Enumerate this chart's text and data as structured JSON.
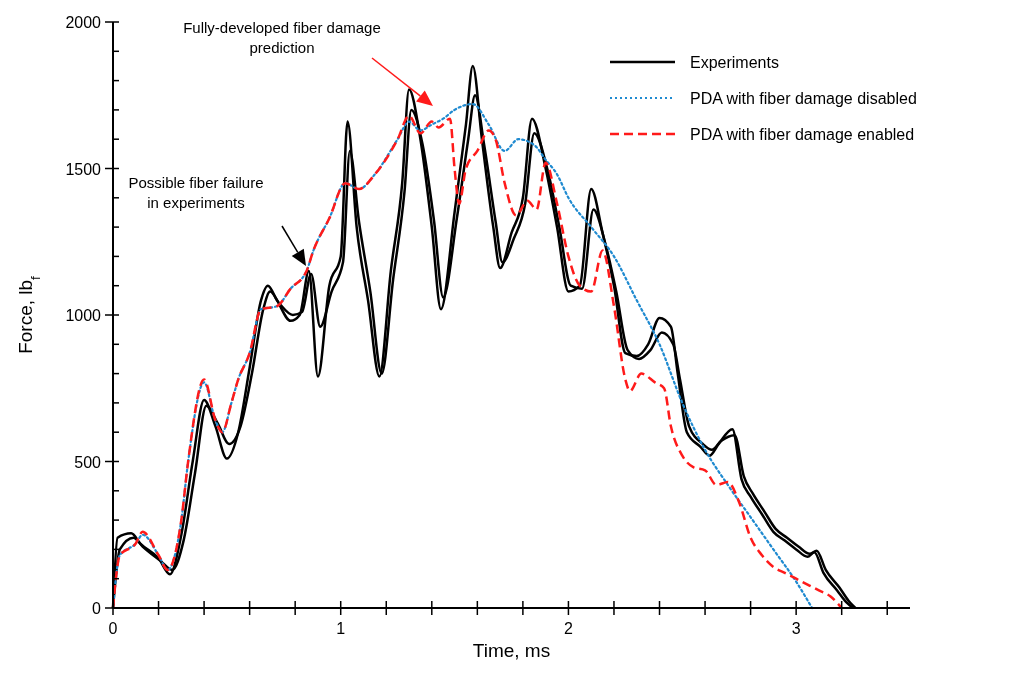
{
  "chart_data": {
    "type": "line",
    "xlabel": "Time, ms",
    "ylabel": "Force, lb$_{f}$",
    "xlim": [
      0,
      3.5
    ],
    "ylim": [
      0,
      2000
    ],
    "xticks": [
      0,
      {
        "value": 0.2,
        "label": null
      },
      {
        "value": 0.4,
        "label": null
      },
      {
        "value": 0.6,
        "label": null
      },
      {
        "value": 0.8,
        "label": null
      },
      1,
      {
        "value": 1.2,
        "label": null
      },
      {
        "value": 1.4,
        "label": null
      },
      {
        "value": 1.6,
        "label": null
      },
      {
        "value": 1.8,
        "label": null
      },
      2,
      {
        "value": 2.2,
        "label": null
      },
      {
        "value": 2.4,
        "label": null
      },
      {
        "value": 2.6,
        "label": null
      },
      {
        "value": 2.8,
        "label": null
      },
      3,
      {
        "value": 3.2,
        "label": null
      },
      {
        "value": 3.4,
        "label": null
      }
    ],
    "yticks": [
      0,
      {
        "value": 100,
        "label": null
      },
      {
        "value": 200,
        "label": null
      },
      {
        "value": 300,
        "label": null
      },
      {
        "value": 400,
        "label": null
      },
      500,
      {
        "value": 600,
        "label": null
      },
      {
        "value": 700,
        "label": null
      },
      {
        "value": 800,
        "label": null
      },
      {
        "value": 900,
        "label": null
      },
      1000,
      {
        "value": 1100,
        "label": null
      },
      {
        "value": 1200,
        "label": null
      },
      {
        "value": 1300,
        "label": null
      },
      {
        "value": 1400,
        "label": null
      },
      1500,
      {
        "value": 1600,
        "label": null
      },
      {
        "value": 1700,
        "label": null
      },
      {
        "value": 1800,
        "label": null
      },
      {
        "value": 1900,
        "label": null
      },
      2000
    ],
    "grid": false,
    "legend": "top right",
    "marker": "none",
    "series": [
      {
        "name": "Experiments",
        "color": "#000000",
        "line_style": "solid",
        "x": [
          0,
          0.02,
          0.08,
          0.12,
          0.2,
          0.25,
          0.3,
          0.35,
          0.4,
          0.45,
          0.5,
          0.55,
          0.6,
          0.65,
          0.68,
          0.72,
          0.78,
          0.82,
          0.86,
          0.9,
          0.95,
          1.0,
          1.03,
          1.07,
          1.12,
          1.17,
          1.22,
          1.27,
          1.3,
          1.35,
          1.4,
          1.44,
          1.5,
          1.55,
          1.58,
          1.62,
          1.67,
          1.7,
          1.75,
          1.8,
          1.84,
          1.9,
          1.95,
          2.0,
          2.05,
          2.1,
          2.15,
          2.2,
          2.25,
          2.3,
          2.35,
          2.4,
          2.45,
          2.48,
          2.52,
          2.58,
          2.62,
          2.66,
          2.72,
          2.76,
          2.8,
          2.85,
          2.9,
          2.95,
          3.0,
          3.05,
          3.08,
          3.12,
          3.18,
          3.22,
          3.25
        ],
        "values": [
          0,
          240,
          255,
          220,
          170,
          115,
          250,
          500,
          710,
          620,
          510,
          600,
          820,
          1050,
          1100,
          1050,
          980,
          1000,
          1150,
          790,
          1100,
          1200,
          1660,
          1300,
          1050,
          790,
          1150,
          1450,
          1770,
          1600,
          1300,
          1020,
          1350,
          1650,
          1850,
          1600,
          1300,
          1160,
          1280,
          1400,
          1670,
          1500,
          1300,
          1080,
          1100,
          1430,
          1280,
          1100,
          870,
          860,
          900,
          990,
          960,
          800,
          600,
          550,
          520,
          560,
          610,
          440,
          380,
          320,
          260,
          230,
          200,
          175,
          190,
          120,
          60,
          20,
          0
        ]
      },
      {
        "color": "#000000",
        "line_style": "solid",
        "x": [
          0,
          0.03,
          0.09,
          0.13,
          0.21,
          0.26,
          0.31,
          0.36,
          0.41,
          0.46,
          0.51,
          0.56,
          0.61,
          0.66,
          0.69,
          0.73,
          0.79,
          0.83,
          0.87,
          0.91,
          0.96,
          1.01,
          1.04,
          1.08,
          1.13,
          1.18,
          1.23,
          1.28,
          1.31,
          1.36,
          1.41,
          1.45,
          1.51,
          1.56,
          1.59,
          1.63,
          1.68,
          1.71,
          1.76,
          1.81,
          1.85,
          1.91,
          1.96,
          2.01,
          2.06,
          2.11,
          2.16,
          2.21,
          2.26,
          2.31,
          2.36,
          2.41,
          2.46,
          2.49,
          2.53,
          2.59,
          2.63,
          2.67,
          2.73,
          2.77,
          2.81,
          2.86,
          2.91,
          2.96,
          3.01,
          3.06,
          3.09,
          3.13,
          3.19,
          3.23,
          3.26
        ],
        "values": [
          0,
          200,
          240,
          210,
          160,
          130,
          230,
          460,
          690,
          630,
          560,
          620,
          800,
          1020,
          1080,
          1040,
          1000,
          1010,
          1140,
          960,
          1080,
          1180,
          1560,
          1320,
          1080,
          800,
          1120,
          1420,
          1700,
          1580,
          1320,
          1060,
          1330,
          1600,
          1750,
          1580,
          1320,
          1180,
          1260,
          1380,
          1620,
          1490,
          1300,
          1100,
          1090,
          1360,
          1250,
          1080,
          880,
          850,
          880,
          940,
          900,
          780,
          620,
          560,
          540,
          570,
          590,
          450,
          390,
          330,
          270,
          240,
          210,
          185,
          195,
          130,
          70,
          25,
          0
        ]
      },
      {
        "name": "PDA with fiber damage disabled",
        "color": "#1f8ad0",
        "line_style": "dotted",
        "x": [
          0,
          0.03,
          0.1,
          0.13,
          0.2,
          0.24,
          0.3,
          0.33,
          0.4,
          0.45,
          0.48,
          0.52,
          0.55,
          0.6,
          0.65,
          0.72,
          0.78,
          0.85,
          0.88,
          0.95,
          1.02,
          1.08,
          1.15,
          1.25,
          1.3,
          1.35,
          1.4,
          1.45,
          1.5,
          1.58,
          1.65,
          1.72,
          1.78,
          1.85,
          1.9,
          1.95,
          2.0,
          2.1,
          2.2,
          2.3,
          2.4,
          2.5,
          2.6,
          2.7,
          2.8,
          2.9,
          3.0,
          3.07
        ],
        "values": [
          0,
          180,
          220,
          250,
          180,
          130,
          300,
          500,
          770,
          640,
          600,
          700,
          780,
          870,
          1020,
          1030,
          1090,
          1150,
          1220,
          1330,
          1450,
          1430,
          1480,
          1600,
          1660,
          1630,
          1650,
          1670,
          1700,
          1720,
          1650,
          1560,
          1600,
          1580,
          1530,
          1480,
          1400,
          1300,
          1200,
          1050,
          900,
          700,
          540,
          420,
          310,
          200,
          90,
          0
        ]
      },
      {
        "name": "PDA with fiber damage enabled",
        "color": "#ff1a1a",
        "line_style": "dashed",
        "x": [
          0,
          0.03,
          0.1,
          0.13,
          0.2,
          0.24,
          0.3,
          0.33,
          0.4,
          0.45,
          0.48,
          0.52,
          0.55,
          0.6,
          0.65,
          0.72,
          0.78,
          0.85,
          0.88,
          0.95,
          1.02,
          1.08,
          1.15,
          1.25,
          1.3,
          1.35,
          1.4,
          1.43,
          1.48,
          1.5,
          1.52,
          1.55,
          1.6,
          1.65,
          1.68,
          1.72,
          1.77,
          1.82,
          1.86,
          1.9,
          1.95,
          2.0,
          2.05,
          2.1,
          2.15,
          2.2,
          2.25,
          2.27,
          2.32,
          2.38,
          2.42,
          2.45,
          2.5,
          2.55,
          2.6,
          2.65,
          2.7,
          2.75,
          2.8,
          2.85,
          2.9,
          2.95,
          3.0,
          3.05,
          3.1,
          3.15,
          3.2
        ],
        "values": [
          0,
          180,
          220,
          260,
          180,
          130,
          300,
          500,
          780,
          640,
          600,
          700,
          780,
          870,
          1020,
          1030,
          1090,
          1150,
          1220,
          1330,
          1450,
          1430,
          1480,
          1600,
          1680,
          1620,
          1660,
          1640,
          1670,
          1500,
          1380,
          1500,
          1560,
          1630,
          1600,
          1450,
          1340,
          1390,
          1360,
          1520,
          1380,
          1200,
          1100,
          1080,
          1220,
          1030,
          780,
          740,
          800,
          770,
          750,
          620,
          520,
          480,
          470,
          420,
          430,
          360,
          240,
          180,
          140,
          120,
          100,
          80,
          60,
          40,
          0
        ]
      }
    ],
    "annotations": [
      "Fully-developed fiber damage prediction",
      "Possible fiber failure in experiments"
    ]
  }
}
